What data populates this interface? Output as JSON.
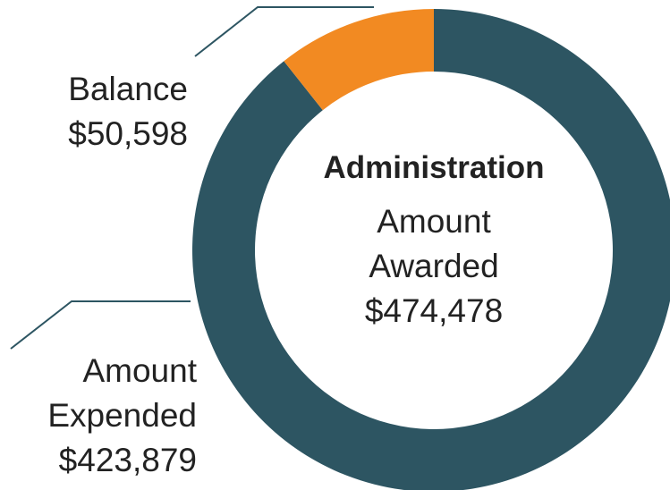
{
  "chart_data": {
    "type": "pie",
    "donut": true,
    "categories": [
      "Amount Expended",
      "Balance"
    ],
    "values": [
      423879,
      50598
    ],
    "value_labels": [
      "$423,879",
      "$50,598"
    ],
    "colors": [
      "#2d5562",
      "#f28a22"
    ],
    "center_title": "Administration",
    "total_label": "Amount Awarded",
    "total": {
      "value": 474478,
      "label": "$474,478"
    }
  }
}
